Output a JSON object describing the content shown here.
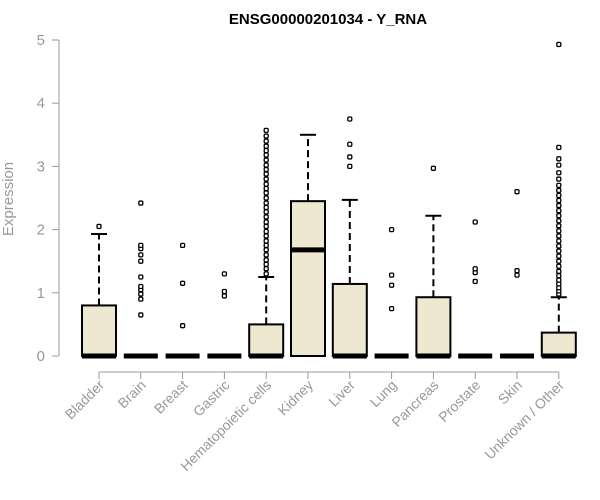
{
  "chart_data": {
    "type": "box",
    "title": "ENSG00000201034 - Y_RNA",
    "xlabel": "",
    "ylabel": "Expression",
    "ylim": [
      0,
      5
    ],
    "y_ticks": [
      0,
      1,
      2,
      3,
      4,
      5
    ],
    "grid": false,
    "legend": "none",
    "box_fill": "#EEE8D0",
    "categories": [
      "Bladder",
      "Brain",
      "Breast",
      "Gastric",
      "Hematopoietic cells",
      "Kidney",
      "Liver",
      "Lung",
      "Pancreas",
      "Prostate",
      "Skin",
      "Unknown / Other"
    ],
    "boxes": [
      {
        "q1": 0,
        "median": 0,
        "q3": 0.8,
        "whisker_low": 0,
        "whisker_high": 1.93,
        "outliers": [
          2.05
        ]
      },
      {
        "q1": 0,
        "median": 0,
        "q3": 0,
        "whisker_low": 0,
        "whisker_high": 0,
        "outliers": [
          0.65,
          0.9,
          0.98,
          1.05,
          1.1,
          1.25,
          1.5,
          1.6,
          1.7,
          1.75,
          2.42
        ]
      },
      {
        "q1": 0,
        "median": 0,
        "q3": 0,
        "whisker_low": 0,
        "whisker_high": 0,
        "outliers": [
          0.48,
          1.15,
          1.75
        ]
      },
      {
        "q1": 0,
        "median": 0,
        "q3": 0,
        "whisker_low": 0,
        "whisker_high": 0,
        "outliers": [
          0.95,
          1.02,
          1.3
        ]
      },
      {
        "q1": 0,
        "median": 0,
        "q3": 0.5,
        "whisker_low": 0,
        "whisker_high": 1.25,
        "outliers": [
          1.3,
          1.38,
          1.45,
          1.52,
          1.6,
          1.68,
          1.75,
          1.82,
          1.9,
          1.97,
          2.05,
          2.12,
          2.2,
          2.28,
          2.35,
          2.42,
          2.5,
          2.58,
          2.65,
          2.72,
          2.8,
          2.88,
          2.95,
          3.02,
          3.1,
          3.18,
          3.25,
          3.32,
          3.4,
          3.48,
          3.57
        ]
      },
      {
        "q1": 0,
        "median": 1.68,
        "q3": 2.45,
        "whisker_low": 0,
        "whisker_high": 3.5,
        "outliers": []
      },
      {
        "q1": 0,
        "median": 0,
        "q3": 1.14,
        "whisker_low": 0,
        "whisker_high": 2.47,
        "outliers": [
          3.0,
          3.15,
          3.35,
          3.75
        ]
      },
      {
        "q1": 0,
        "median": 0,
        "q3": 0,
        "whisker_low": 0,
        "whisker_high": 0,
        "outliers": [
          0.75,
          1.12,
          1.28,
          2.0
        ]
      },
      {
        "q1": 0,
        "median": 0,
        "q3": 0.93,
        "whisker_low": 0,
        "whisker_high": 2.22,
        "outliers": [
          2.97
        ]
      },
      {
        "q1": 0,
        "median": 0,
        "q3": 0,
        "whisker_low": 0,
        "whisker_high": 0,
        "outliers": [
          1.18,
          1.32,
          1.38,
          2.12
        ]
      },
      {
        "q1": 0,
        "median": 0,
        "q3": 0,
        "whisker_low": 0,
        "whisker_high": 0,
        "outliers": [
          1.28,
          1.35,
          2.6
        ]
      },
      {
        "q1": 0,
        "median": 0,
        "q3": 0.37,
        "whisker_low": 0,
        "whisker_high": 0.93,
        "outliers": [
          0.98,
          1.03,
          1.08,
          1.14,
          1.2,
          1.27,
          1.34,
          1.42,
          1.5,
          1.58,
          1.66,
          1.74,
          1.82,
          1.9,
          1.98,
          2.06,
          2.14,
          2.22,
          2.3,
          2.38,
          2.46,
          2.54,
          2.62,
          2.7,
          2.8,
          2.9,
          3.02,
          3.12,
          3.3,
          4.93
        ]
      }
    ]
  }
}
